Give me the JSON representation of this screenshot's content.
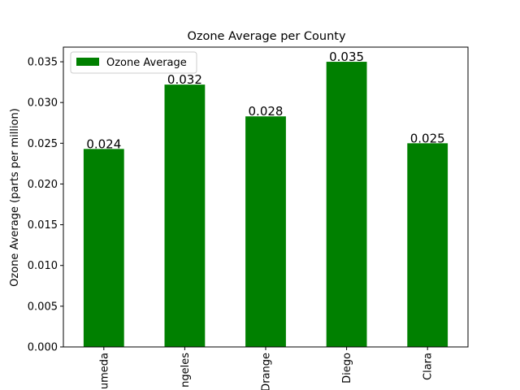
{
  "chart_data": {
    "type": "bar",
    "title": "Ozone Average per County",
    "xlabel": "",
    "ylabel": "Ozone Average (parts per million)",
    "categories": [
      "Alameda",
      "Los Angeles",
      "Orange",
      "San Diego",
      "Santa Clara"
    ],
    "category_labels_visible": [
      "umeda",
      "ngeles",
      "Drange",
      "Diego",
      "Clara"
    ],
    "series": [
      {
        "name": "Ozone Average",
        "values": [
          0.0243,
          0.0322,
          0.0283,
          0.035,
          0.025
        ],
        "labels": [
          "0.024",
          "0.032",
          "0.028",
          "0.035",
          "0.025"
        ],
        "color": "#008000"
      }
    ],
    "ylim": [
      0,
      0.0368
    ],
    "yticks": [
      0.0,
      0.005,
      0.01,
      0.015,
      0.02,
      0.025,
      0.03,
      0.035
    ],
    "ytick_labels": [
      "0.000",
      "0.005",
      "0.010",
      "0.015",
      "0.020",
      "0.025",
      "0.030",
      "0.035"
    ],
    "grid": false,
    "legend_position": "top-left"
  }
}
